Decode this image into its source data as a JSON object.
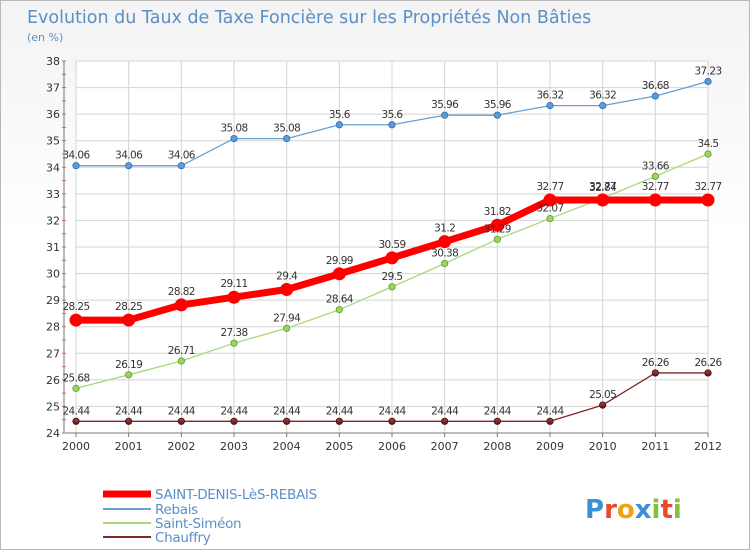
{
  "chart_data": {
    "type": "line",
    "title": "Evolution du Taux de Taxe Foncière sur les Propriétés Non Bâties",
    "subtitle": "(en %)",
    "categories": [
      "2000",
      "2001",
      "2002",
      "2003",
      "2004",
      "2005",
      "2006",
      "2007",
      "2008",
      "2009",
      "2010",
      "2011",
      "2012"
    ],
    "y_ticks": [
      "24",
      "25",
      "26",
      "27",
      "28",
      "29",
      "30",
      "31",
      "32",
      "33",
      "34",
      "35",
      "36",
      "37",
      "38"
    ],
    "ylim": [
      24,
      38
    ],
    "grid": true,
    "legend_position": "bottom-left",
    "series": [
      {
        "name": "SAINT-DENIS-LèS-REBAIS",
        "color": "#ff0000",
        "values": [
          28.25,
          28.25,
          28.82,
          29.11,
          29.4,
          29.99,
          30.59,
          31.2,
          31.82,
          32.77,
          32.77,
          32.77,
          32.77
        ],
        "labels": [
          "28.25",
          "28.25",
          "28.82",
          "29.11",
          "29.4",
          "29.99",
          "30.59",
          "31.2",
          "31.82",
          "32.77",
          "32.77",
          "32.77",
          "32.77"
        ]
      },
      {
        "name": "Rebais",
        "color": "#6aa0d2",
        "values": [
          34.06,
          34.06,
          34.06,
          35.08,
          35.08,
          35.6,
          35.6,
          35.96,
          35.96,
          36.32,
          36.32,
          36.68,
          37.23
        ],
        "labels": [
          "34.06",
          "34.06",
          "34.06",
          "35.08",
          "35.08",
          "35.6",
          "35.6",
          "35.96",
          "35.96",
          "36.32",
          "36.32",
          "36.68",
          "37.23"
        ]
      },
      {
        "name": "Saint-Siméon",
        "color": "#a8d878",
        "values": [
          25.68,
          26.19,
          26.71,
          27.38,
          27.94,
          28.64,
          29.5,
          30.38,
          31.29,
          32.07,
          32.84,
          33.66,
          34.5
        ],
        "labels": [
          "25.68",
          "26.19",
          "26.71",
          "27.38",
          "27.94",
          "28.64",
          "29.5",
          "30.38",
          "31.29",
          "32.07",
          "32.84",
          "33.66",
          "34.5"
        ]
      },
      {
        "name": "Chauffry",
        "color": "#7a2828",
        "values": [
          24.44,
          24.44,
          24.44,
          24.44,
          24.44,
          24.44,
          24.44,
          24.44,
          24.44,
          24.44,
          25.05,
          26.26,
          26.26
        ],
        "labels": [
          "24.44",
          "24.44",
          "24.44",
          "24.44",
          "24.44",
          "24.44",
          "24.44",
          "24.44",
          "24.44",
          "24.44",
          "25.05",
          "26.26",
          "26.26"
        ]
      }
    ]
  },
  "logo": {
    "text": "Proxiti"
  }
}
